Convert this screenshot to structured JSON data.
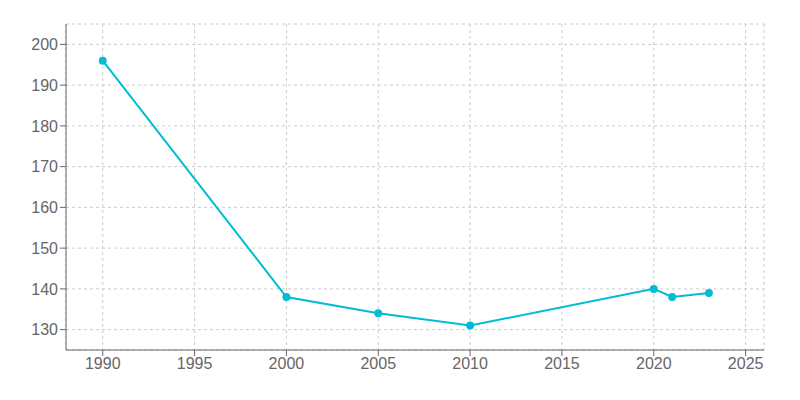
{
  "chart_data": {
    "type": "line",
    "x": [
      1990,
      2000,
      2005,
      2010,
      2020,
      2021,
      2023
    ],
    "values": [
      196,
      138,
      134,
      131,
      140,
      138,
      139
    ],
    "color": "#00BCD4",
    "marker": "circle",
    "xlim": [
      1988,
      2026
    ],
    "ylim": [
      125,
      205
    ],
    "xticks": [
      1990,
      1995,
      2000,
      2005,
      2010,
      2015,
      2020,
      2025
    ],
    "yticks": [
      130,
      140,
      150,
      160,
      170,
      180,
      190,
      200
    ],
    "grid": true
  }
}
